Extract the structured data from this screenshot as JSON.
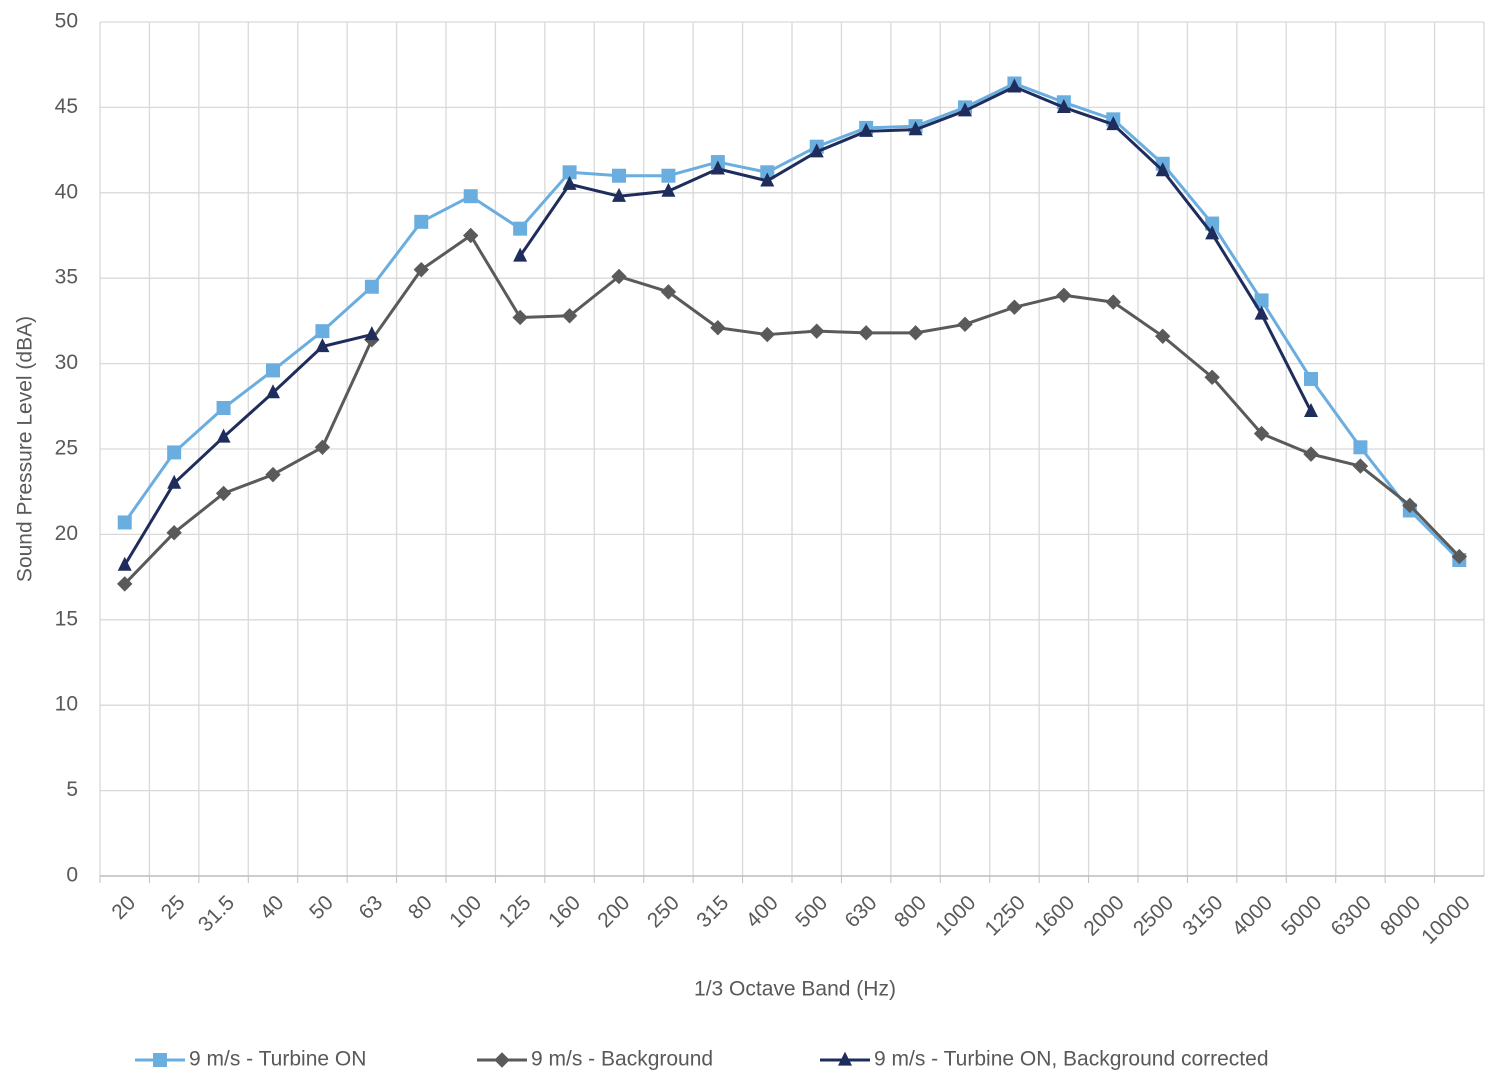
{
  "chart_data": {
    "type": "line",
    "y_label": "Sound Pressure Level (dBA)",
    "x_label": "1/3 Octave Band (Hz)",
    "categories": [
      "20",
      "25",
      "31.5",
      "40",
      "50",
      "63",
      "80",
      "100",
      "125",
      "160",
      "200",
      "250",
      "315",
      "400",
      "500",
      "630",
      "800",
      "1000",
      "1250",
      "1600",
      "2000",
      "2500",
      "3150",
      "4000",
      "5000",
      "6300",
      "8000",
      "10000"
    ],
    "series": [
      {
        "name": "9 m/s - Turbine ON",
        "color": "#6aaee0",
        "marker": "square",
        "values": [
          20.7,
          24.8,
          27.4,
          29.6,
          31.9,
          34.5,
          38.3,
          39.8,
          37.9,
          41.2,
          41.0,
          41.0,
          41.8,
          41.2,
          42.7,
          43.8,
          43.9,
          45.0,
          46.4,
          45.3,
          44.3,
          41.7,
          38.2,
          33.7,
          29.1,
          25.1,
          21.4,
          18.5
        ]
      },
      {
        "name": "9 m/s - Background",
        "color": "#5a5a5a",
        "marker": "diamond",
        "values": [
          17.1,
          20.1,
          22.4,
          23.5,
          25.1,
          31.4,
          35.5,
          37.5,
          32.7,
          32.8,
          35.1,
          34.2,
          32.1,
          31.7,
          31.9,
          31.8,
          31.8,
          32.3,
          33.3,
          34.0,
          33.6,
          31.6,
          29.2,
          25.9,
          24.7,
          24.0,
          21.7,
          18.7
        ]
      },
      {
        "name": "9 m/s - Turbine ON, Background corrected",
        "color": "#1f2d5c",
        "marker": "triangle",
        "values": [
          18.2,
          23.0,
          25.7,
          28.3,
          31.0,
          31.7,
          null,
          null,
          36.3,
          40.5,
          39.8,
          40.1,
          41.4,
          40.7,
          42.4,
          43.6,
          43.7,
          44.8,
          46.2,
          45.0,
          44.0,
          41.3,
          37.6,
          32.9,
          27.2,
          null,
          null,
          null
        ]
      }
    ],
    "ylim": [
      0,
      50
    ],
    "yticks": [
      0,
      5,
      10,
      15,
      20,
      25,
      30,
      35,
      40,
      45,
      50
    ],
    "grid": true,
    "legend": "bottom"
  }
}
